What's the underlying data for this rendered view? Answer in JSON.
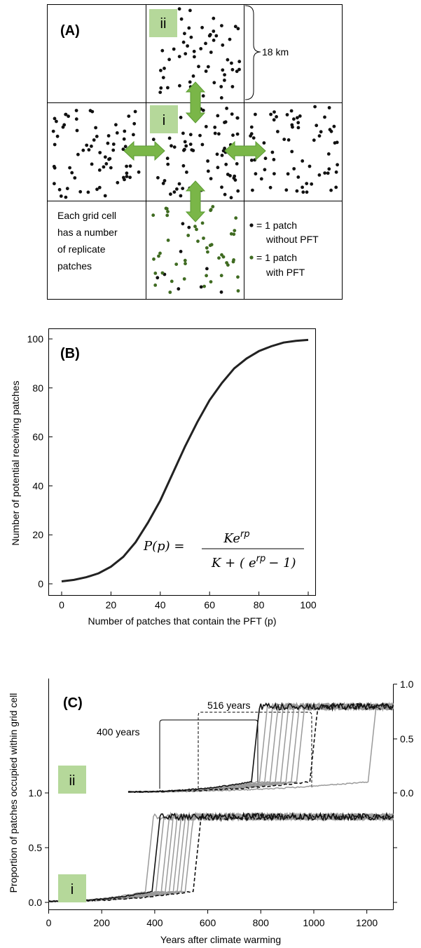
{
  "panel_a": {
    "caption": "(A)",
    "distance_label": "18 km",
    "cell_labels": {
      "i": "i",
      "ii": "ii"
    },
    "grid_text": [
      "Each grid cell",
      "has a number",
      "of replicate",
      "patches"
    ],
    "legend": {
      "without": [
        "= 1 patch",
        "without PFT"
      ],
      "with": [
        "= 1 patch",
        "with PFT"
      ]
    },
    "colors": {
      "box": "#b5d89a",
      "arrow": "#7ab648",
      "dot": "#111111",
      "dot_pft": "#3f6b21"
    }
  },
  "panel_b": {
    "caption": "(B)",
    "equation": {
      "lhs": "P(p) =",
      "numerator": "Ke",
      "numerator_exp": "rp",
      "den_prefix": "K + (",
      "den_e": "e",
      "den_exp": "rp",
      "den_suffix": "− 1)"
    }
  },
  "panel_c": {
    "caption": "(C)",
    "label_i": "i",
    "label_ii": "ii",
    "annotation_400": "400 years",
    "annotation_516": "516 years"
  },
  "chart_data": [
    {
      "type": "line",
      "title": "",
      "xlabel": "Number of patches that contain the PFT (p)",
      "ylabel": "Number of potential receiving patches",
      "xlim": [
        0,
        100
      ],
      "ylim": [
        0,
        100
      ],
      "xticks": [
        "0",
        "20",
        "40",
        "60",
        "80",
        "100"
      ],
      "yticks": [
        "0",
        "20",
        "40",
        "60",
        "80",
        "100"
      ],
      "grid": false,
      "series": [
        {
          "color": "#222222",
          "x": [
            0,
            5,
            10,
            15,
            20,
            25,
            30,
            35,
            40,
            45,
            50,
            55,
            60,
            65,
            70,
            75,
            80,
            85,
            90,
            95,
            100
          ],
          "y": [
            1.0,
            1.6,
            2.7,
            4.3,
            7.0,
            11.0,
            17.0,
            25.0,
            34.0,
            45.0,
            56.0,
            66.0,
            75.0,
            82.0,
            88.0,
            92.0,
            95.0,
            97.0,
            98.5,
            99.2,
            99.6
          ]
        }
      ]
    },
    {
      "type": "line",
      "title": "",
      "xlabel": "Years after climate warming",
      "ylabel": "Proportion of patches occupied within grid cell",
      "xlim": [
        0,
        1300
      ],
      "xticks": [
        "0",
        "200",
        "400",
        "600",
        "800",
        "1000",
        "1200"
      ],
      "yticks_left": [
        "0.0",
        "0.5",
        "1.0"
      ],
      "yticks_right": [
        "0.0",
        "0.5",
        "1.0"
      ],
      "grid": false,
      "subplots": [
        {
          "name": "i",
          "ylim": [
            0,
            0.8
          ],
          "plateau": 0.78,
          "transition_years": [
            380,
            405,
            420,
            440,
            455,
            470,
            485,
            500,
            515,
            530,
            560
          ],
          "black_transition_years": [
            405,
            560
          ]
        },
        {
          "name": "ii",
          "ylim": [
            0,
            0.8
          ],
          "plateau": 0.78,
          "transition_years": [
            780,
            810,
            830,
            850,
            870,
            890,
            910,
            930,
            950,
            1000,
            1220
          ],
          "black_transition_years": [
            780,
            1000
          ]
        }
      ]
    }
  ]
}
